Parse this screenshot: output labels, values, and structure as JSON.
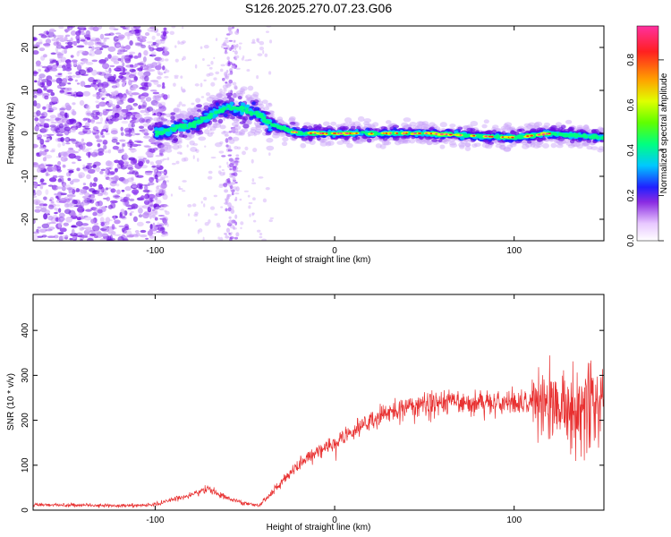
{
  "chart_data": [
    {
      "type": "heatmap",
      "title": "S126.2025.270.07.23.G06",
      "xlabel": "Height of straight line (km)",
      "ylabel": "Frequency (Hz)",
      "xlim": [
        -168,
        150
      ],
      "ylim": [
        -25,
        25
      ],
      "xticks": [
        -100,
        0,
        100
      ],
      "yticks": [
        -20,
        -10,
        0,
        10,
        20
      ],
      "colorbar": {
        "label": "Normalized spectral amplitude",
        "range": [
          0.0,
          0.95
        ],
        "ticks": [
          0.0,
          0.2,
          0.4,
          0.6,
          0.8
        ]
      },
      "ridge": {
        "description_points_x": [
          -100,
          -80,
          -60,
          -45,
          -35,
          -20,
          0,
          50,
          100,
          120,
          150
        ],
        "description_points_y": [
          0,
          2,
          6,
          5,
          2,
          0,
          0,
          0,
          -1,
          0,
          -1
        ]
      },
      "noise_region_x": [
        -168,
        -100
      ]
    },
    {
      "type": "line",
      "xlabel": "Height of straight line (km)",
      "ylabel": "SNR (10 * v/v)",
      "xlim": [
        -168,
        150
      ],
      "ylim": [
        0,
        480
      ],
      "xticks": [
        -100,
        0,
        100
      ],
      "yticks": [
        0,
        100,
        200,
        300,
        400
      ],
      "series_color": "#e83030",
      "trend": {
        "x": [
          -168,
          -120,
          -100,
          -85,
          -70,
          -55,
          -42,
          -30,
          -15,
          0,
          20,
          40,
          60,
          80,
          100,
          120,
          135,
          150
        ],
        "y": [
          12,
          10,
          12,
          30,
          45,
          20,
          10,
          60,
          120,
          150,
          200,
          230,
          240,
          240,
          235,
          240,
          220,
          230
        ]
      }
    }
  ]
}
